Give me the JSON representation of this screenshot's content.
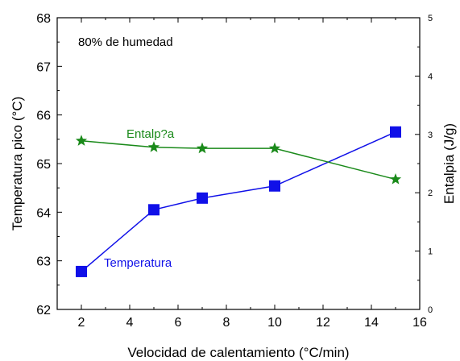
{
  "chart_data": {
    "type": "line",
    "xlabel": "Velocidad de calentamiento (°C/min)",
    "ylabel_left": "Temperatura pico (°C)",
    "ylabel_right": "Entalpia (J/g)",
    "annotation": "80% de humedad",
    "xlim": [
      1,
      16
    ],
    "ylim_left": [
      62,
      68
    ],
    "ylim_right": [
      0,
      5
    ],
    "x_ticks": [
      2,
      4,
      6,
      8,
      10,
      12,
      14,
      16
    ],
    "y_left_ticks": [
      62,
      63,
      64,
      65,
      66,
      67,
      68
    ],
    "y_right_ticks": [
      0,
      1,
      2,
      3,
      4,
      5
    ],
    "series": [
      {
        "name": "Temperatura",
        "axis": "left",
        "marker": "square",
        "color": "#1010e8",
        "x": [
          2,
          5,
          7,
          10,
          15
        ],
        "values": [
          62.78,
          64.05,
          64.29,
          64.54,
          65.65
        ]
      },
      {
        "name": "Entalp?a",
        "axis": "right",
        "marker": "star",
        "color": "#1a8a1a",
        "x": [
          2,
          5,
          7,
          10,
          15
        ],
        "values": [
          2.89,
          2.78,
          2.76,
          2.76,
          2.23
        ]
      }
    ]
  }
}
